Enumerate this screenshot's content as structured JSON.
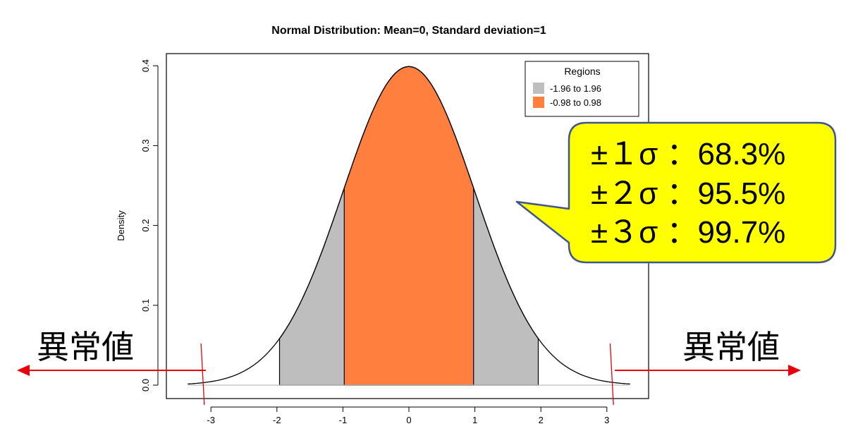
{
  "chart_data": {
    "type": "area",
    "title": "Normal Distribution:  Mean=0, Standard deviation=1",
    "xlabel": "",
    "ylabel": "Density",
    "distribution": {
      "mean": 0,
      "sd": 1
    },
    "xlim": [
      -3.35,
      3.35
    ],
    "ylim": [
      0,
      0.4
    ],
    "x_ticks": [
      "-3",
      "-2",
      "-1",
      "0",
      "1",
      "2",
      "3"
    ],
    "y_ticks": [
      "0.0",
      "0.1",
      "0.2",
      "0.3",
      "0.4"
    ],
    "series": [
      {
        "name": "-1.96 to 1.96",
        "from": -1.96,
        "to": 1.96,
        "color": "#bebebe"
      },
      {
        "name": "-0.98 to 0.98",
        "from": -0.98,
        "to": 0.98,
        "color": "#ff7f3f"
      }
    ],
    "legend": {
      "title": "Regions",
      "position": "top-right",
      "entries": [
        "-1.96 to 1.96",
        "-0.98 to 0.98"
      ]
    },
    "grid": false
  },
  "callout": {
    "lines": [
      "±１σ ：68.3%",
      "±２σ ：95.5%",
      "±３σ ：99.7%"
    ],
    "background": "#ffff00",
    "border": "#41558f"
  },
  "outliers": {
    "left_label": "異常値",
    "right_label": "異常値",
    "threshold": 3.1,
    "color": "#e8000b"
  }
}
